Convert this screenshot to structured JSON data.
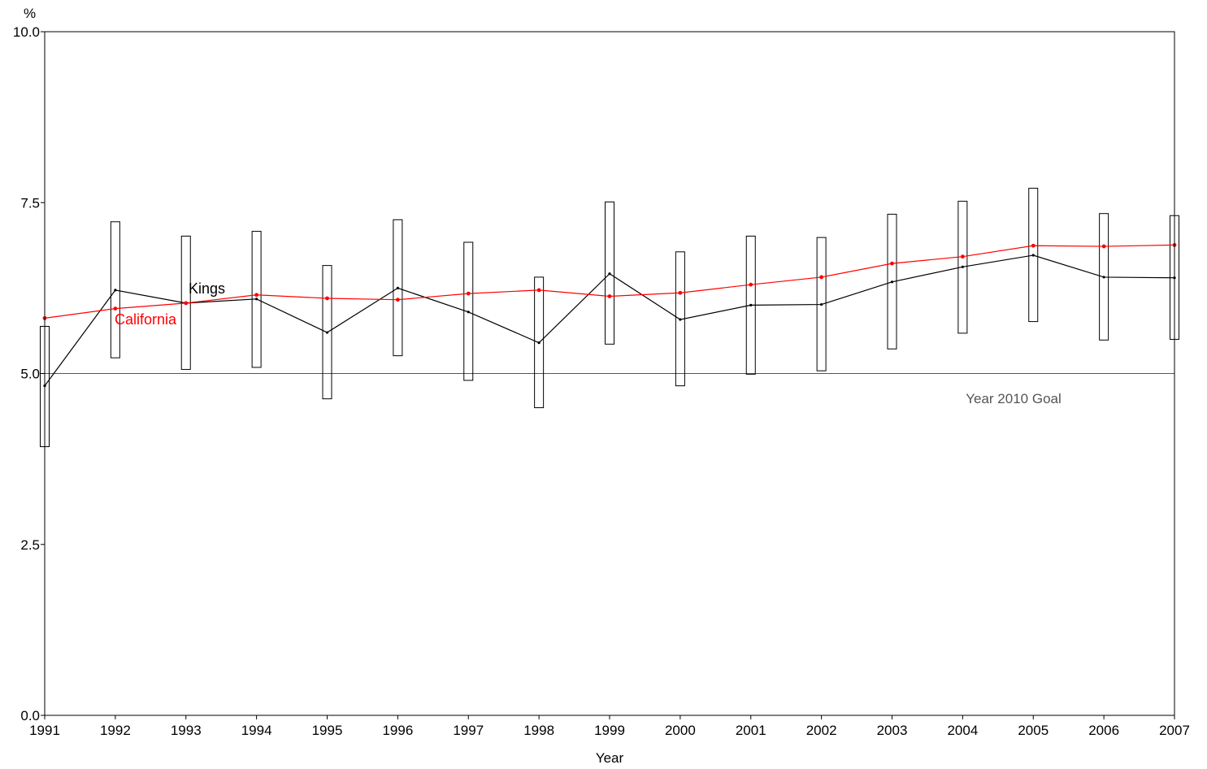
{
  "chart_data": {
    "type": "line",
    "ylabel": "%",
    "xlabel": "Year",
    "ylim": [
      0,
      10
    ],
    "xlim": [
      1991,
      2007
    ],
    "yticks": [
      0,
      2.5,
      5,
      7.5,
      10
    ],
    "ytick_labels": [
      "0.0",
      "2.5",
      "5.0",
      "7.5",
      "10.0"
    ],
    "x": [
      1991,
      1992,
      1993,
      1994,
      1995,
      1996,
      1997,
      1998,
      1999,
      2000,
      2001,
      2002,
      2003,
      2004,
      2005,
      2006,
      2007
    ],
    "xtick_labels": [
      "1991",
      "1992",
      "1993",
      "1994",
      "1995",
      "1996",
      "1997",
      "1998",
      "1999",
      "2000",
      "2001",
      "2002",
      "2003",
      "2004",
      "2005",
      "2006",
      "2007"
    ],
    "series": [
      {
        "name": "Kings",
        "color": "#000000",
        "values": [
          4.82,
          6.22,
          6.03,
          6.09,
          5.6,
          6.25,
          5.9,
          5.45,
          6.46,
          5.79,
          6.0,
          6.01,
          6.34,
          6.56,
          6.73,
          6.41,
          6.4
        ],
        "ci_low": [
          3.93,
          5.23,
          5.06,
          5.09,
          4.63,
          5.26,
          4.9,
          4.5,
          5.43,
          4.82,
          4.99,
          5.04,
          5.36,
          5.59,
          5.76,
          5.49,
          5.5
        ],
        "ci_high": [
          5.69,
          7.22,
          7.01,
          7.08,
          6.58,
          7.25,
          6.92,
          6.41,
          7.51,
          6.78,
          7.01,
          6.99,
          7.33,
          7.52,
          7.71,
          7.34,
          7.31
        ]
      },
      {
        "name": "California",
        "color": "#ff0000",
        "values": [
          5.81,
          5.95,
          6.03,
          6.15,
          6.1,
          6.08,
          6.17,
          6.22,
          6.13,
          6.18,
          6.3,
          6.41,
          6.61,
          6.71,
          6.87,
          6.86,
          6.88
        ]
      }
    ],
    "reference_line": {
      "value": 5.0,
      "label": "Year 2010 Goal",
      "color": "#555555"
    }
  }
}
